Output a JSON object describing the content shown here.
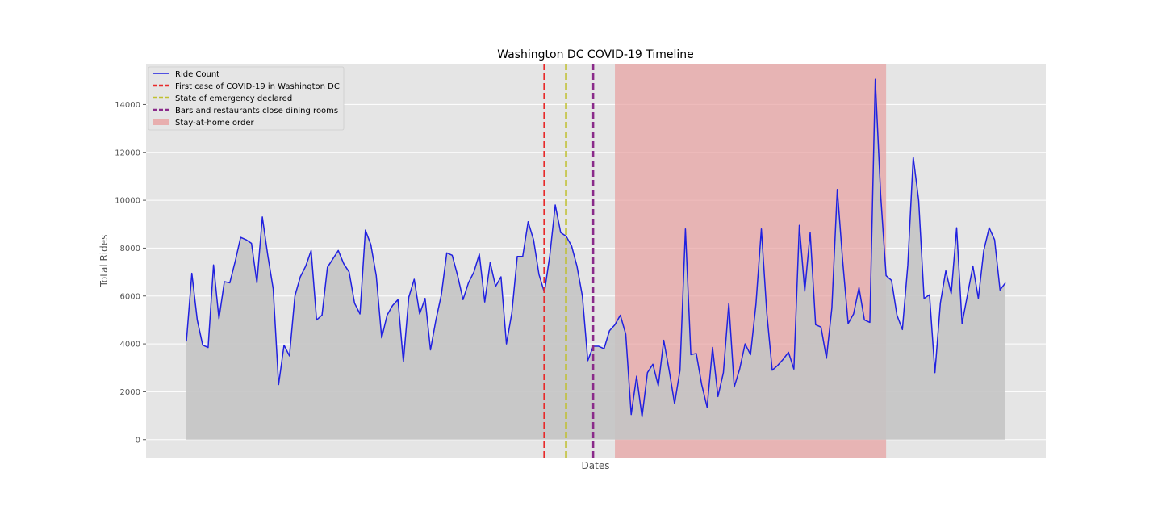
{
  "chart_data": {
    "type": "line",
    "title": "Washington DC COVID-19 Timeline",
    "xlabel": "Dates",
    "ylabel": "Total Rides",
    "ylim": [
      -750,
      15700
    ],
    "yticks": [
      0,
      2000,
      4000,
      6000,
      8000,
      10000,
      12000,
      14000
    ],
    "grid": true,
    "legend_position": "top-left",
    "colors": {
      "line": "#2020e0",
      "fill": "#c4c4c4",
      "first_case": "#e82a2a",
      "emergency": "#c0c030",
      "bars_close": "#8a2a8a",
      "stay_home": "#e8a0a0",
      "plot_bg": "#e5e5e5",
      "grid": "#ffffff"
    },
    "series": [
      {
        "name": "Ride Count",
        "values": [
          4100,
          6950,
          5000,
          3950,
          3850,
          7300,
          5050,
          6600,
          6550,
          7450,
          8450,
          8350,
          8200,
          6550,
          9300,
          7700,
          6300,
          2300,
          3950,
          3500,
          6000,
          6800,
          7250,
          7900,
          5000,
          5200,
          7200,
          7550,
          7900,
          7350,
          7000,
          5700,
          5250,
          8750,
          8150,
          6850,
          4250,
          5200,
          5600,
          5850,
          3250,
          5950,
          6700,
          5250,
          5900,
          3750,
          5000,
          6050,
          7800,
          7700,
          6850,
          5850,
          6550,
          7000,
          7750,
          5750,
          7400,
          6400,
          6800,
          4000,
          5300,
          7650,
          7650,
          9100,
          8350,
          6900,
          6150,
          7700,
          9800,
          8650,
          8500,
          8100,
          7250,
          6000,
          3300,
          3900,
          3900,
          3800,
          4550,
          4800,
          5200,
          4400,
          1050,
          2650,
          950,
          2800,
          3150,
          2250,
          4150,
          2900,
          1500,
          2900,
          8800,
          3550,
          3600,
          2300,
          1350,
          3850,
          1800,
          2800,
          5700,
          2200,
          2950,
          4000,
          3550,
          5650,
          8800,
          5300,
          2900,
          3100,
          3350,
          3650,
          2950,
          8950,
          6200,
          8650,
          4800,
          4700,
          3400,
          5500,
          10450,
          7450,
          4850,
          5250,
          6350,
          5000,
          4900,
          15050,
          10200,
          6850,
          6650,
          5200,
          4600,
          7300,
          11800,
          10000,
          5900,
          6050,
          2800,
          5700,
          7050,
          6100,
          8850,
          4850,
          6050,
          7250,
          5900,
          7900,
          8850,
          8350,
          6250,
          6550
        ]
      }
    ],
    "events": [
      {
        "name": "First case of COVID-19 in Washington DC",
        "index": 66
      },
      {
        "name": "State of emergency declared",
        "index": 70
      },
      {
        "name": "Bars and restaurants close dining rooms",
        "index": 75
      }
    ],
    "shaded_span": {
      "name": "Stay-at-home order",
      "start_index": 79,
      "end_index": 129
    }
  }
}
